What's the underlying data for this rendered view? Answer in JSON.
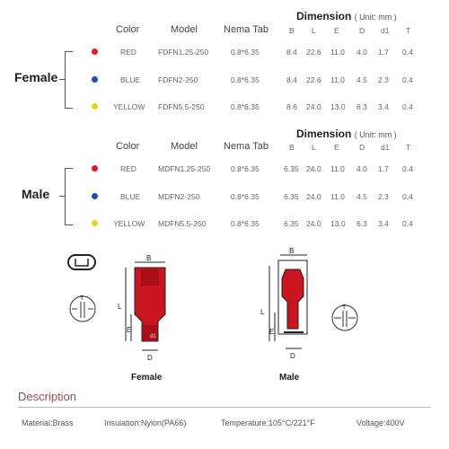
{
  "tables": [
    {
      "group_label": "Female",
      "headers": {
        "color": "Color",
        "model": "Model",
        "nema": "Nema Tab",
        "dimension": "Dimension",
        "unit": "( Unit: mm )",
        "cols": [
          "B",
          "L",
          "E",
          "D",
          "d1",
          "T"
        ]
      },
      "rows": [
        {
          "dot_color": "#d8202a",
          "color": "RED",
          "model": "FDFN1.25-250",
          "nema": "0.8*6.35",
          "dims": [
            "8.4",
            "22.6",
            "11.0",
            "4.0",
            "1.7",
            "0.4"
          ]
        },
        {
          "dot_color": "#1f4db8",
          "color": "BLUE",
          "model": "FDFN2-250",
          "nema": "0.8*6.35",
          "dims": [
            "8.4",
            "22.6",
            "11.0",
            "4.5",
            "2.3",
            "0.4"
          ]
        },
        {
          "dot_color": "#f2cd1c",
          "color": "YELLOW",
          "model": "FDFN5.5-250",
          "nema": "0.8*6.35",
          "dims": [
            "8.6",
            "24.0",
            "13.0",
            "6.3",
            "3.4",
            "0.4"
          ]
        }
      ]
    },
    {
      "group_label": "Male",
      "headers": {
        "color": "Color",
        "model": "Model",
        "nema": "Nema Tab",
        "dimension": "Dimension",
        "unit": "( Unit: mm )",
        "cols": [
          "B",
          "L",
          "E",
          "D",
          "d1",
          "T"
        ]
      },
      "rows": [
        {
          "dot_color": "#d8202a",
          "color": "RED",
          "model": "MDFN1.25-250",
          "nema": "0.8*6.35",
          "dims": [
            "6.35",
            "24.0",
            "11.0",
            "4.0",
            "1.7",
            "0.4"
          ]
        },
        {
          "dot_color": "#1f4db8",
          "color": "BLUE",
          "model": "MDFN2-250",
          "nema": "0.8*6.35",
          "dims": [
            "6.35",
            "24.0",
            "11.0",
            "4.5",
            "2.3",
            "0.4"
          ]
        },
        {
          "dot_color": "#f2cd1c",
          "color": "YELLOW",
          "model": "MDFN5.5-250",
          "nema": "0.8*6.35",
          "dims": [
            "6.35",
            "24.0",
            "13.0",
            "6.3",
            "3.4",
            "0.4"
          ]
        }
      ]
    }
  ],
  "diagrams": {
    "female_label": "Female",
    "male_label": "Male",
    "dim_letters": {
      "b": "B",
      "l": "L",
      "e": "E",
      "d": "D",
      "d1": "d1",
      "t": "T"
    }
  },
  "description": {
    "title": "Description",
    "accent_color": "#a04a4a",
    "material": "Material:Brass",
    "insulation": "Insulation:Nylon(PA66)",
    "temperature": "Temperature:105°C/221°F",
    "voltage": "Voltage:400V"
  }
}
